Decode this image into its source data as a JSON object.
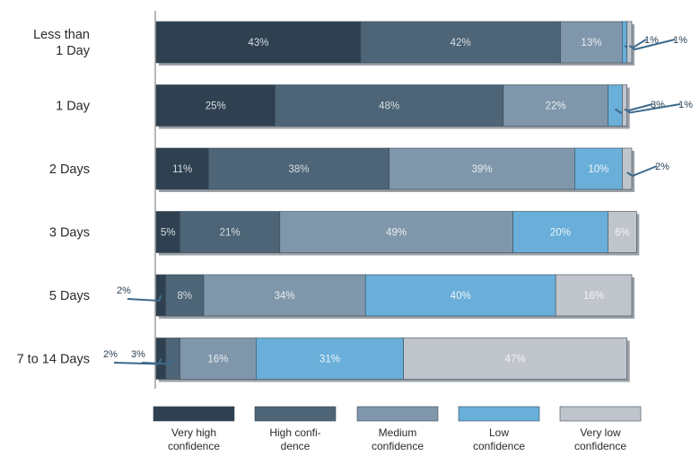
{
  "chart_data": {
    "type": "bar",
    "orientation": "horizontal",
    "stacked": true,
    "title": "",
    "xlabel": "",
    "ylabel": "",
    "xlim": [
      0,
      100
    ],
    "grid": false,
    "legend_position": "bottom",
    "categories": [
      [
        "Less than",
        "1 Day"
      ],
      [
        "1 Day"
      ],
      [
        "2 Days"
      ],
      [
        "3 Days"
      ],
      [
        "5 Days"
      ],
      [
        "7 to 14 Days"
      ]
    ],
    "series": [
      {
        "name": [
          "Very high",
          "confidence"
        ],
        "color": "#2f4150",
        "label_color": "#d7dde3",
        "values": [
          43,
          25,
          11,
          5,
          2,
          2
        ]
      },
      {
        "name": [
          "High confi-",
          "dence"
        ],
        "color": "#4d6576",
        "label_color": "#d7dde3",
        "values": [
          42,
          48,
          38,
          21,
          8,
          3
        ]
      },
      {
        "name": [
          "Medium",
          "confidence"
        ],
        "color": "#8097ab",
        "label_color": "#e8edf1",
        "values": [
          13,
          22,
          39,
          49,
          34,
          16
        ]
      },
      {
        "name": [
          "Low",
          "confidence"
        ],
        "color": "#69afd9",
        "label_color": "#eef5fa",
        "values": [
          1,
          3,
          10,
          20,
          40,
          31
        ]
      },
      {
        "name": [
          "Very low",
          "confidence"
        ],
        "color": "#c0c5cc",
        "label_color": "#f2f3f5",
        "values": [
          1,
          1,
          2,
          6,
          16,
          47
        ]
      }
    ],
    "value_labels": [
      [
        "43%",
        "42%",
        "13%",
        "1%",
        "1%"
      ],
      [
        "25%",
        "48%",
        "22%",
        "3%",
        "1%"
      ],
      [
        "11%",
        "38%",
        "39%",
        "10%",
        "2%"
      ],
      [
        "5%",
        "21%",
        "49%",
        "20%",
        "6%"
      ],
      [
        "2%",
        "8%",
        "34%",
        "40%",
        "16%"
      ],
      [
        "2%",
        "3%",
        "16%",
        "31%",
        "47%"
      ]
    ]
  }
}
